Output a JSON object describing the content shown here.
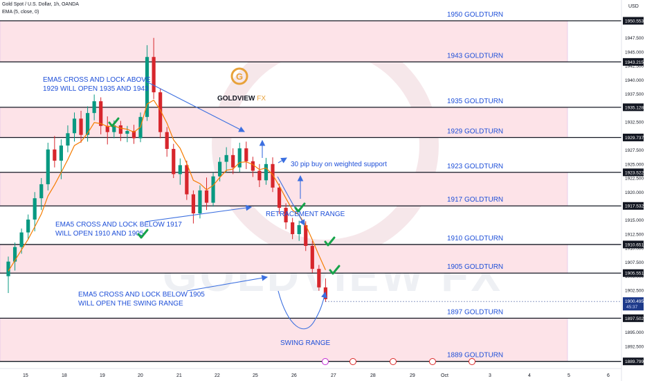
{
  "header": {
    "symbol_line": "Gold Spot / U.S. Dollar, 1h, OANDA",
    "indicator_line": "EMA (5, close, 0)",
    "currency": "USD"
  },
  "colors": {
    "zone_fill": "#fde3e8",
    "level_line": "#131722",
    "label_text": "#1e4fd8",
    "annotation_text": "#1e4fd8",
    "arrow": "#3b6fe0",
    "bull_candle": "#089981",
    "bear_candle": "#d7262c",
    "ema": "#f57c00",
    "check": "#16a34a",
    "logo": "#e8a23a",
    "price_badge": "#1e3a8a"
  },
  "chart_data": {
    "type": "candlestick",
    "instrument": "Gold Spot / U.S. Dollar",
    "timeframe": "1h",
    "ylim": [
      1888.5,
      1951.5
    ],
    "y_ticks": [
      1892.5,
      1895.0,
      1897.5,
      1900.0,
      1902.5,
      1905.0,
      1907.5,
      1910.0,
      1912.5,
      1915.0,
      1917.5,
      1920.0,
      1922.5,
      1925.0,
      1927.5,
      1930.0,
      1932.5,
      1935.0,
      1937.5,
      1940.0,
      1942.5,
      1945.0,
      1947.5
    ],
    "x_ticks": [
      "15",
      "18",
      "19",
      "20",
      "21",
      "22",
      "25",
      "26",
      "27",
      "28",
      "29",
      "Oct",
      "3",
      "4",
      "5",
      "6"
    ],
    "current_price": "1900.495",
    "countdown": "45:37",
    "levels": [
      {
        "label": "1950 GOLDTURN",
        "price": 1950.553,
        "tag": "1950.553"
      },
      {
        "label": "1943 GOLDTURN",
        "price": 1943.215,
        "tag": "1943.215"
      },
      {
        "label": "1935 GOLDTURN",
        "price": 1935.128,
        "tag": "1935.128"
      },
      {
        "label": "1929 GOLDTURN",
        "price": 1929.737,
        "tag": "1929.737"
      },
      {
        "label": "1923 GOLDTURN",
        "price": 1923.522,
        "tag": "1923.522"
      },
      {
        "label": "1917 GOLDTURN",
        "price": 1917.532,
        "tag": "1917.532"
      },
      {
        "label": "1910 GOLDTURN",
        "price": 1910.651,
        "tag": "1910.651"
      },
      {
        "label": "1905 GOLDTURN",
        "price": 1905.551,
        "tag": "1905.551"
      },
      {
        "label": "1897 GOLDTURN",
        "price": 1897.502,
        "tag": "1897.502"
      },
      {
        "label": "1889 GOLDTURN",
        "price": 1889.799,
        "tag": "1889.799"
      }
    ],
    "zones": [
      [
        1943.215,
        1950.553
      ],
      [
        1929.737,
        1935.128
      ],
      [
        1917.532,
        1923.522
      ],
      [
        1905.551,
        1910.651
      ],
      [
        1889.799,
        1897.502
      ]
    ],
    "ohlc": [
      [
        1905.0,
        1908.5,
        1902.0,
        1907.6
      ],
      [
        1907.6,
        1911.0,
        1906.0,
        1910.2
      ],
      [
        1910.2,
        1913.5,
        1909.0,
        1912.8
      ],
      [
        1912.8,
        1916.0,
        1911.5,
        1915.1
      ],
      [
        1915.1,
        1920.0,
        1913.0,
        1918.9
      ],
      [
        1918.9,
        1922.5,
        1916.8,
        1921.4
      ],
      [
        1921.4,
        1928.8,
        1920.3,
        1927.6
      ],
      [
        1927.6,
        1930.0,
        1924.4,
        1925.6
      ],
      [
        1925.6,
        1929.4,
        1922.3,
        1928.3
      ],
      [
        1928.3,
        1931.9,
        1927.1,
        1930.5
      ],
      [
        1930.5,
        1934.2,
        1929.0,
        1933.1
      ],
      [
        1933.1,
        1934.5,
        1928.8,
        1930.2
      ],
      [
        1930.2,
        1935.3,
        1929.0,
        1934.1
      ],
      [
        1934.1,
        1937.4,
        1932.8,
        1936.2
      ],
      [
        1936.2,
        1936.9,
        1930.3,
        1931.8
      ],
      [
        1931.8,
        1933.5,
        1928.5,
        1930.7
      ],
      [
        1930.7,
        1932.8,
        1929.6,
        1931.9
      ],
      [
        1931.9,
        1932.7,
        1929.1,
        1930.4
      ],
      [
        1930.4,
        1931.8,
        1928.9,
        1930.9
      ],
      [
        1930.9,
        1932.0,
        1928.6,
        1929.6
      ],
      [
        1929.6,
        1934.2,
        1928.9,
        1933.4
      ],
      [
        1933.4,
        1946.2,
        1932.7,
        1944.1
      ],
      [
        1944.1,
        1947.5,
        1936.6,
        1937.8
      ],
      [
        1937.8,
        1938.5,
        1929.6,
        1930.7
      ],
      [
        1930.7,
        1931.6,
        1926.3,
        1927.7
      ],
      [
        1927.7,
        1928.6,
        1922.5,
        1923.2
      ],
      [
        1923.2,
        1926.0,
        1921.3,
        1924.8
      ],
      [
        1924.8,
        1925.6,
        1918.6,
        1919.6
      ],
      [
        1919.6,
        1920.3,
        1914.4,
        1916.2
      ],
      [
        1916.2,
        1921.2,
        1915.3,
        1920.3
      ],
      [
        1920.3,
        1922.6,
        1916.8,
        1918.1
      ],
      [
        1918.1,
        1923.5,
        1917.4,
        1922.8
      ],
      [
        1922.8,
        1926.2,
        1921.9,
        1925.4
      ],
      [
        1925.4,
        1928.0,
        1923.5,
        1926.6
      ],
      [
        1926.6,
        1927.8,
        1923.2,
        1924.4
      ],
      [
        1924.4,
        1928.8,
        1923.6,
        1927.8
      ],
      [
        1927.8,
        1929.0,
        1924.1,
        1925.5
      ],
      [
        1925.5,
        1926.3,
        1922.7,
        1923.8
      ],
      [
        1923.8,
        1925.0,
        1920.9,
        1922.1
      ],
      [
        1922.1,
        1926.1,
        1921.3,
        1925.0
      ],
      [
        1925.0,
        1926.2,
        1920.0,
        1920.8
      ],
      [
        1920.8,
        1921.5,
        1916.1,
        1917.2
      ],
      [
        1917.2,
        1918.0,
        1913.4,
        1914.6
      ],
      [
        1914.6,
        1915.4,
        1911.6,
        1912.5
      ],
      [
        1912.5,
        1914.9,
        1911.3,
        1914.1
      ],
      [
        1914.1,
        1914.8,
        1909.5,
        1910.4
      ],
      [
        1910.4,
        1911.3,
        1905.6,
        1906.3
      ],
      [
        1906.3,
        1907.0,
        1902.4,
        1903.0
      ],
      [
        1903.0,
        1904.6,
        1900.4,
        1900.9
      ]
    ],
    "ema5": [
      1905.9,
      1907.8,
      1909.7,
      1911.6,
      1913.8,
      1916.1,
      1919.3,
      1921.3,
      1923.5,
      1925.8,
      1928.3,
      1929.0,
      1930.5,
      1932.4,
      1932.2,
      1931.7,
      1931.8,
      1931.4,
      1931.2,
      1930.7,
      1931.6,
      1935.7,
      1936.4,
      1934.6,
      1932.3,
      1929.3,
      1927.8,
      1925.1,
      1922.1,
      1921.5,
      1920.4,
      1921.2,
      1922.6,
      1923.9,
      1924.1,
      1925.3,
      1925.4,
      1924.9,
      1924.0,
      1924.3,
      1923.1,
      1921.1,
      1918.9,
      1916.8,
      1915.9,
      1914.1,
      1911.5,
      1908.7,
      1906.1
    ],
    "current_price_value": 1900.495
  },
  "annotations": {
    "ema_1943": [
      "EMA5 CROSS AND LOCK ABOVE",
      "1929 WILL OPEN 1935 AND 1943"
    ],
    "ema_1917": [
      "EMA5 CROSS AND LOCK BELOW 1917",
      "WILL OPEN 1910 AND 1905"
    ],
    "ema_1905": [
      "EMA5 CROSS AND LOCK BELOW 1905",
      "WILL OPEN THE SWING RANGE"
    ],
    "buy_note": "30 pip buy on weighted support",
    "retracement": "RETRACEMENT RANGE",
    "swing": "SWING RANGE"
  },
  "logo": {
    "name": "GOLDVIEW FX",
    "letter": "G",
    "part1": "GOLDVIEW",
    "part2": " FX"
  },
  "watermark": "GOLDVIEW FX"
}
